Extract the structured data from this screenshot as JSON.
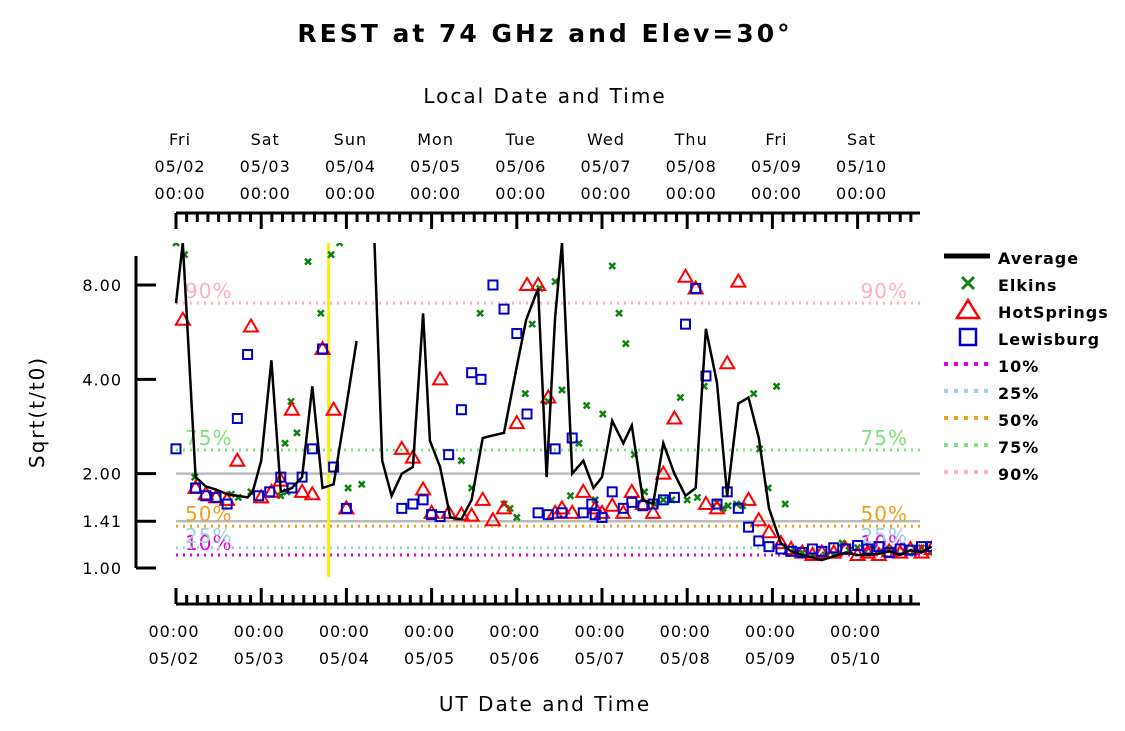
{
  "chart_data": {
    "type": "scatter",
    "title": "REST at 74 GHz and Elev=30°",
    "top_xlabel": "Local Date and Time",
    "xlabel": "UT Date and Time",
    "ylabel": "Sqrt(t/t0)",
    "y_scale": "log",
    "ylim": [
      0.93,
      10.9
    ],
    "xlim": [
      "05/02 00:00",
      "05/10 20:00"
    ],
    "y_ticks": [
      "8.00",
      "4.00",
      "2.00",
      "1.41",
      "1.00"
    ],
    "top_ticks": [
      {
        "day": "Fri",
        "date": "05/02",
        "time": "00:00"
      },
      {
        "day": "Sat",
        "date": "05/03",
        "time": "00:00"
      },
      {
        "day": "Sun",
        "date": "05/04",
        "time": "00:00"
      },
      {
        "day": "Mon",
        "date": "05/05",
        "time": "00:00"
      },
      {
        "day": "Tue",
        "date": "05/06",
        "time": "00:00"
      },
      {
        "day": "Wed",
        "date": "05/07",
        "time": "00:00"
      },
      {
        "day": "Thu",
        "date": "05/08",
        "time": "00:00"
      },
      {
        "day": "Fri",
        "date": "05/09",
        "time": "00:00"
      },
      {
        "day": "Sat",
        "date": "05/10",
        "time": "00:00"
      }
    ],
    "bottom_ticks": [
      {
        "time": "00:00",
        "date": "05/02"
      },
      {
        "time": "00:00",
        "date": "05/03"
      },
      {
        "time": "00:00",
        "date": "05/04"
      },
      {
        "time": "00:00",
        "date": "05/05"
      },
      {
        "time": "00:00",
        "date": "05/06"
      },
      {
        "time": "00:00",
        "date": "05/07"
      },
      {
        "time": "00:00",
        "date": "05/08"
      },
      {
        "time": "00:00",
        "date": "05/09"
      },
      {
        "time": "00:00",
        "date": "05/10"
      }
    ],
    "reference_lines": [
      2.0,
      1.41
    ],
    "marker_line_x": "05/03 19:00",
    "percentiles": [
      {
        "name": "10%",
        "value": 1.1,
        "color": "#e000e0",
        "label_left": "10%",
        "label_right": "10%"
      },
      {
        "name": "25%",
        "value": 1.16,
        "color": "#a0d0e0",
        "label_left": "25%",
        "label_right": "25%"
      },
      {
        "name": "50%",
        "value": 1.36,
        "color": "#f0a020",
        "label_left": "50%",
        "label_right": "50%"
      },
      {
        "name": "75%",
        "value": 2.38,
        "color": "#80e080",
        "label_left": "75%",
        "label_right": "75%"
      },
      {
        "name": "90%",
        "value": 7.0,
        "color": "#ffb0c0",
        "label_left": "90%",
        "label_right": "90%"
      }
    ],
    "series": [
      {
        "name": "Average",
        "color": "#000000",
        "style": "line",
        "gaps": [
          [
            2.15,
            2.33
          ]
        ],
        "x_days": [
          0,
          0.08,
          0.23,
          0.35,
          0.47,
          0.6,
          0.72,
          0.84,
          0.9,
          1.0,
          1.12,
          1.23,
          1.36,
          1.48,
          1.6,
          1.72,
          1.85,
          2.0,
          2.12,
          2.33,
          2.42,
          2.53,
          2.65,
          2.78,
          2.9,
          2.98,
          3.1,
          3.22,
          3.35,
          3.47,
          3.6,
          3.72,
          3.85,
          4.0,
          4.11,
          4.25,
          4.35,
          4.45,
          4.53,
          4.65,
          4.78,
          4.9,
          5.0,
          5.12,
          5.25,
          5.35,
          5.48,
          5.6,
          5.72,
          5.85,
          5.98,
          6.1,
          6.22,
          6.35,
          6.47,
          6.6,
          6.72,
          6.84,
          6.96,
          7.1,
          7.22,
          7.35,
          7.47,
          7.58,
          7.72,
          7.86,
          8.0,
          8.12,
          8.25,
          8.37,
          8.5,
          8.62,
          8.75,
          8.87
        ],
        "values": [
          7.0,
          11.0,
          1.95,
          1.82,
          1.78,
          1.72,
          1.7,
          1.68,
          1.75,
          2.2,
          4.6,
          1.75,
          1.8,
          1.95,
          3.8,
          1.8,
          1.85,
          3.3,
          5.3,
          11.0,
          2.2,
          1.7,
          2.0,
          2.1,
          6.5,
          2.55,
          2.1,
          1.45,
          1.43,
          1.65,
          2.6,
          2.65,
          2.7,
          4.4,
          6.2,
          7.8,
          1.95,
          6.3,
          11.0,
          2.0,
          2.2,
          1.8,
          1.95,
          2.95,
          2.5,
          2.85,
          1.65,
          1.6,
          2.5,
          2.0,
          1.7,
          1.8,
          5.8,
          3.9,
          1.7,
          3.35,
          3.5,
          2.6,
          1.55,
          1.2,
          1.13,
          1.1,
          1.08,
          1.06,
          1.09,
          1.12,
          1.1,
          1.1,
          1.11,
          1.13,
          1.1,
          1.14,
          1.12,
          1.17
        ]
      },
      {
        "name": "Elkins",
        "color": "#108010",
        "marker": "x",
        "x_days": [
          0,
          0.1,
          0.22,
          0.65,
          0.73,
          0.88,
          1.23,
          1.28,
          1.3,
          1.35,
          1.42,
          1.55,
          1.7,
          1.82,
          1.92,
          2.02,
          2.18,
          3.35,
          3.47,
          3.57,
          3.85,
          3.92,
          4.0,
          4.1,
          4.18,
          4.27,
          4.37,
          4.45,
          4.53,
          4.63,
          4.73,
          4.82,
          4.92,
          5.01,
          5.12,
          5.2,
          5.28,
          5.38,
          5.5,
          5.62,
          5.72,
          5.82,
          5.92,
          6.0,
          6.12,
          6.2,
          6.35,
          6.42,
          6.48,
          6.58,
          6.65,
          6.78,
          6.85,
          6.95,
          7.05,
          7.15,
          7.25,
          7.35,
          7.47,
          7.55,
          7.62,
          7.72,
          7.82,
          7.9,
          8.0,
          8.08,
          8.18,
          8.27,
          8.37,
          8.45,
          8.55,
          8.65,
          8.75,
          8.85
        ],
        "values": [
          11.0,
          10.0,
          1.95,
          1.72,
          1.68,
          1.75,
          1.7,
          2.5,
          1.75,
          3.4,
          2.7,
          9.5,
          6.5,
          10.0,
          11.0,
          1.8,
          1.85,
          2.2,
          1.8,
          6.5,
          1.6,
          1.55,
          1.45,
          3.6,
          6.0,
          7.8,
          3.4,
          8.2,
          3.7,
          1.7,
          2.5,
          3.3,
          1.65,
          3.1,
          9.2,
          6.5,
          5.2,
          2.3,
          1.75,
          1.6,
          1.65,
          1.65,
          3.5,
          1.65,
          1.68,
          3.8,
          1.62,
          1.55,
          1.58,
          1.6,
          1.58,
          3.6,
          2.4,
          1.8,
          3.8,
          1.6,
          1.15,
          1.12,
          1.1,
          1.08,
          1.1,
          1.1,
          1.2,
          1.14,
          1.16,
          1.12,
          1.15,
          1.13,
          1.15,
          1.12,
          1.13,
          1.12,
          1.16,
          1.12
        ]
      },
      {
        "name": "HotSprings",
        "color": "#ff0000",
        "marker": "triangle",
        "x_days": [
          0.08,
          0.23,
          0.35,
          0.47,
          0.6,
          0.72,
          0.88,
          1.0,
          1.12,
          1.23,
          1.36,
          1.48,
          1.6,
          1.72,
          1.85,
          2.0,
          2.65,
          2.78,
          2.9,
          3.0,
          3.1,
          3.2,
          3.35,
          3.47,
          3.6,
          3.72,
          3.85,
          4.0,
          4.12,
          4.25,
          4.37,
          4.45,
          4.53,
          4.65,
          4.78,
          4.92,
          5.0,
          5.12,
          5.25,
          5.35,
          5.48,
          5.6,
          5.72,
          5.85,
          5.98,
          6.1,
          6.22,
          6.35,
          6.47,
          6.6,
          6.72,
          6.84,
          6.96,
          7.1,
          7.22,
          7.35,
          7.47,
          7.58,
          7.72,
          7.86,
          8.0,
          8.12,
          8.25,
          8.37,
          8.5,
          8.62,
          8.75,
          8.87
        ],
        "values": [
          6.2,
          1.8,
          1.72,
          1.68,
          1.65,
          2.2,
          5.9,
          1.68,
          1.75,
          1.9,
          3.2,
          1.75,
          1.72,
          5.0,
          3.2,
          1.55,
          2.4,
          2.25,
          1.78,
          1.5,
          4.0,
          1.5,
          1.48,
          1.47,
          1.65,
          1.42,
          1.55,
          2.9,
          8.0,
          8.0,
          3.5,
          1.5,
          1.55,
          1.5,
          1.75,
          1.55,
          1.5,
          1.58,
          1.5,
          1.75,
          1.6,
          1.5,
          2.0,
          3.0,
          8.5,
          7.8,
          1.6,
          1.55,
          4.5,
          8.2,
          1.65,
          1.42,
          1.3,
          1.2,
          1.15,
          1.12,
          1.1,
          1.12,
          1.12,
          1.15,
          1.1,
          1.12,
          1.1,
          1.13,
          1.12,
          1.15,
          1.12,
          1.15
        ]
      },
      {
        "name": "Lewisburg",
        "color": "#0000cc",
        "marker": "square",
        "x_days": [
          0,
          0.23,
          0.35,
          0.47,
          0.6,
          0.72,
          0.84,
          0.97,
          1.1,
          1.23,
          1.36,
          1.48,
          1.6,
          1.72,
          1.85,
          2.0,
          2.65,
          2.78,
          2.9,
          3.0,
          3.1,
          3.2,
          3.35,
          3.47,
          3.58,
          3.72,
          3.85,
          4.0,
          4.12,
          4.25,
          4.37,
          4.45,
          4.53,
          4.65,
          4.78,
          4.88,
          4.92,
          5.0,
          5.12,
          5.25,
          5.35,
          5.48,
          5.6,
          5.72,
          5.85,
          5.98,
          6.1,
          6.22,
          6.35,
          6.47,
          6.6,
          6.72,
          6.84,
          6.96,
          7.1,
          7.22,
          7.35,
          7.47,
          7.58,
          7.72,
          7.86,
          8.0,
          8.12,
          8.25,
          8.37,
          8.5,
          8.62,
          8.75,
          8.87
        ],
        "values": [
          2.4,
          1.8,
          1.7,
          1.68,
          1.6,
          3.0,
          4.8,
          1.7,
          1.75,
          1.95,
          1.8,
          1.95,
          2.4,
          5.0,
          2.1,
          1.55,
          1.55,
          1.6,
          1.65,
          1.48,
          1.46,
          2.3,
          3.2,
          4.2,
          4.0,
          8.0,
          6.7,
          5.6,
          3.1,
          1.5,
          1.48,
          2.4,
          1.5,
          2.6,
          1.5,
          1.6,
          1.48,
          1.45,
          1.75,
          1.55,
          1.62,
          1.58,
          1.6,
          1.65,
          1.68,
          6.0,
          7.8,
          4.1,
          1.6,
          1.75,
          1.55,
          1.35,
          1.22,
          1.17,
          1.15,
          1.13,
          1.12,
          1.15,
          1.13,
          1.16,
          1.15,
          1.18,
          1.15,
          1.17,
          1.12,
          1.15,
          1.14,
          1.17,
          1.17
        ]
      }
    ]
  }
}
